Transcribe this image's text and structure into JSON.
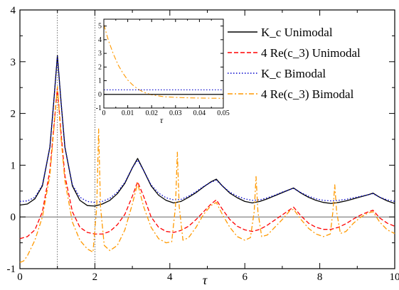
{
  "chart_data": [
    {
      "type": "line",
      "xlabel": "τ",
      "ylabel": "",
      "xlim": [
        0,
        10
      ],
      "ylim": [
        -1,
        4
      ],
      "xticks": [
        "0",
        "2",
        "4",
        "6",
        "8",
        "10"
      ],
      "yticks": [
        "-1",
        "0",
        "1",
        "2",
        "3",
        "4"
      ],
      "vlines": [
        1,
        2
      ],
      "hline": 0,
      "legend": {
        "placement": "top-right",
        "entries": [
          "K_c Unimodal",
          "4 Re(c_3) Unimodal",
          "K_c Bimodal",
          "4 Re(c_3) Bimodal"
        ]
      },
      "series": [
        {
          "name": "K_c Unimodal",
          "color": "#000000",
          "style": "solid",
          "points": [
            [
              0,
              0.23
            ],
            [
              0.2,
              0.25
            ],
            [
              0.4,
              0.35
            ],
            [
              0.6,
              0.6
            ],
            [
              0.8,
              1.35
            ],
            [
              0.9,
              2.2
            ],
            [
              1.0,
              3.12
            ],
            [
              1.1,
              2.2
            ],
            [
              1.2,
              1.35
            ],
            [
              1.4,
              0.6
            ],
            [
              1.6,
              0.32
            ],
            [
              1.8,
              0.22
            ],
            [
              2.0,
              0.21
            ],
            [
              2.2,
              0.25
            ],
            [
              2.4,
              0.32
            ],
            [
              2.6,
              0.45
            ],
            [
              2.8,
              0.65
            ],
            [
              3.0,
              0.95
            ],
            [
              3.14,
              1.13
            ],
            [
              3.3,
              0.9
            ],
            [
              3.5,
              0.6
            ],
            [
              3.7,
              0.42
            ],
            [
              3.9,
              0.32
            ],
            [
              4.1,
              0.27
            ],
            [
              4.3,
              0.3
            ],
            [
              4.5,
              0.38
            ],
            [
              4.7,
              0.47
            ],
            [
              4.9,
              0.58
            ],
            [
              5.1,
              0.68
            ],
            [
              5.24,
              0.73
            ],
            [
              5.4,
              0.6
            ],
            [
              5.6,
              0.46
            ],
            [
              5.8,
              0.37
            ],
            [
              6.0,
              0.3
            ],
            [
              6.2,
              0.27
            ],
            [
              6.4,
              0.3
            ],
            [
              6.6,
              0.35
            ],
            [
              6.8,
              0.41
            ],
            [
              7.0,
              0.47
            ],
            [
              7.2,
              0.53
            ],
            [
              7.3,
              0.56
            ],
            [
              7.5,
              0.46
            ],
            [
              7.7,
              0.38
            ],
            [
              7.9,
              0.32
            ],
            [
              8.1,
              0.28
            ],
            [
              8.3,
              0.26
            ],
            [
              8.5,
              0.28
            ],
            [
              8.7,
              0.31
            ],
            [
              8.9,
              0.35
            ],
            [
              9.1,
              0.39
            ],
            [
              9.3,
              0.43
            ],
            [
              9.42,
              0.46
            ],
            [
              9.6,
              0.38
            ],
            [
              9.8,
              0.31
            ],
            [
              10.0,
              0.26
            ]
          ]
        },
        {
          "name": "4 Re(c_3) Unimodal",
          "color": "#ff0000",
          "style": "dashed",
          "points": [
            [
              0,
              -0.42
            ],
            [
              0.2,
              -0.38
            ],
            [
              0.4,
              -0.25
            ],
            [
              0.6,
              0.1
            ],
            [
              0.8,
              0.9
            ],
            [
              0.9,
              1.7
            ],
            [
              1.0,
              2.5
            ],
            [
              1.1,
              1.6
            ],
            [
              1.2,
              0.8
            ],
            [
              1.4,
              0.1
            ],
            [
              1.6,
              -0.2
            ],
            [
              1.8,
              -0.3
            ],
            [
              2.0,
              -0.33
            ],
            [
              2.2,
              -0.33
            ],
            [
              2.4,
              -0.28
            ],
            [
              2.6,
              -0.15
            ],
            [
              2.8,
              0.05
            ],
            [
              3.0,
              0.4
            ],
            [
              3.14,
              0.68
            ],
            [
              3.3,
              0.4
            ],
            [
              3.5,
              0.0
            ],
            [
              3.7,
              -0.2
            ],
            [
              3.9,
              -0.28
            ],
            [
              4.1,
              -0.3
            ],
            [
              4.3,
              -0.26
            ],
            [
              4.5,
              -0.18
            ],
            [
              4.7,
              -0.05
            ],
            [
              4.9,
              0.1
            ],
            [
              5.1,
              0.25
            ],
            [
              5.24,
              0.33
            ],
            [
              5.4,
              0.15
            ],
            [
              5.6,
              -0.05
            ],
            [
              5.8,
              -0.18
            ],
            [
              6.0,
              -0.25
            ],
            [
              6.2,
              -0.28
            ],
            [
              6.4,
              -0.24
            ],
            [
              6.6,
              -0.16
            ],
            [
              6.8,
              -0.06
            ],
            [
              7.0,
              0.04
            ],
            [
              7.2,
              0.14
            ],
            [
              7.3,
              0.19
            ],
            [
              7.5,
              0.02
            ],
            [
              7.7,
              -0.12
            ],
            [
              7.9,
              -0.2
            ],
            [
              8.1,
              -0.24
            ],
            [
              8.3,
              -0.24
            ],
            [
              8.5,
              -0.2
            ],
            [
              8.7,
              -0.13
            ],
            [
              8.9,
              -0.04
            ],
            [
              9.1,
              0.04
            ],
            [
              9.3,
              0.1
            ],
            [
              9.42,
              0.13
            ],
            [
              9.6,
              -0.02
            ],
            [
              9.8,
              -0.12
            ],
            [
              10.0,
              -0.18
            ]
          ]
        },
        {
          "name": "K_c Bimodal",
          "color": "#0000cc",
          "style": "dotted",
          "points": [
            [
              0,
              0.3
            ],
            [
              0.2,
              0.31
            ],
            [
              0.4,
              0.38
            ],
            [
              0.6,
              0.62
            ],
            [
              0.8,
              1.35
            ],
            [
              0.9,
              2.2
            ],
            [
              1.0,
              3.1
            ],
            [
              1.1,
              2.2
            ],
            [
              1.2,
              1.35
            ],
            [
              1.4,
              0.62
            ],
            [
              1.6,
              0.38
            ],
            [
              1.8,
              0.3
            ],
            [
              2.0,
              0.28
            ],
            [
              2.2,
              0.3
            ],
            [
              2.4,
              0.36
            ],
            [
              2.6,
              0.48
            ],
            [
              2.8,
              0.67
            ],
            [
              3.0,
              0.95
            ],
            [
              3.14,
              1.1
            ],
            [
              3.3,
              0.9
            ],
            [
              3.5,
              0.62
            ],
            [
              3.7,
              0.46
            ],
            [
              3.9,
              0.37
            ],
            [
              4.1,
              0.33
            ],
            [
              4.3,
              0.34
            ],
            [
              4.5,
              0.4
            ],
            [
              4.7,
              0.49
            ],
            [
              4.9,
              0.59
            ],
            [
              5.1,
              0.67
            ],
            [
              5.24,
              0.71
            ],
            [
              5.4,
              0.6
            ],
            [
              5.6,
              0.48
            ],
            [
              5.8,
              0.4
            ],
            [
              6.0,
              0.35
            ],
            [
              6.2,
              0.32
            ],
            [
              6.4,
              0.33
            ],
            [
              6.6,
              0.37
            ],
            [
              6.8,
              0.42
            ],
            [
              7.0,
              0.48
            ],
            [
              7.2,
              0.53
            ],
            [
              7.3,
              0.55
            ],
            [
              7.5,
              0.47
            ],
            [
              7.7,
              0.4
            ],
            [
              7.9,
              0.35
            ],
            [
              8.1,
              0.32
            ],
            [
              8.3,
              0.31
            ],
            [
              8.5,
              0.32
            ],
            [
              8.7,
              0.34
            ],
            [
              8.9,
              0.37
            ],
            [
              9.1,
              0.4
            ],
            [
              9.3,
              0.43
            ],
            [
              9.42,
              0.45
            ],
            [
              9.6,
              0.38
            ],
            [
              9.8,
              0.33
            ],
            [
              10.0,
              0.3
            ]
          ]
        },
        {
          "name": "4 Re(c_3) Bimodal",
          "color": "#ff9900",
          "style": "dashdot",
          "points": [
            [
              0,
              -0.88
            ],
            [
              0.1,
              -0.85
            ],
            [
              0.2,
              -0.75
            ],
            [
              0.4,
              -0.45
            ],
            [
              0.6,
              0.0
            ],
            [
              0.8,
              0.8
            ],
            [
              0.9,
              1.65
            ],
            [
              1.0,
              2.52
            ],
            [
              1.1,
              1.5
            ],
            [
              1.2,
              0.7
            ],
            [
              1.4,
              -0.1
            ],
            [
              1.6,
              -0.45
            ],
            [
              1.8,
              -0.62
            ],
            [
              1.95,
              -0.68
            ],
            [
              2.05,
              0.2
            ],
            [
              2.1,
              1.7
            ],
            [
              2.15,
              0.2
            ],
            [
              2.25,
              -0.55
            ],
            [
              2.4,
              -0.65
            ],
            [
              2.6,
              -0.55
            ],
            [
              2.8,
              -0.25
            ],
            [
              3.0,
              0.25
            ],
            [
              3.14,
              0.65
            ],
            [
              3.3,
              0.2
            ],
            [
              3.5,
              -0.2
            ],
            [
              3.7,
              -0.42
            ],
            [
              3.9,
              -0.5
            ],
            [
              4.05,
              -0.48
            ],
            [
              4.15,
              0.2
            ],
            [
              4.2,
              1.25
            ],
            [
              4.25,
              0.2
            ],
            [
              4.35,
              -0.45
            ],
            [
              4.5,
              -0.4
            ],
            [
              4.7,
              -0.2
            ],
            [
              4.9,
              0.05
            ],
            [
              5.1,
              0.22
            ],
            [
              5.24,
              0.28
            ],
            [
              5.4,
              0.05
            ],
            [
              5.6,
              -0.2
            ],
            [
              5.8,
              -0.38
            ],
            [
              6.0,
              -0.45
            ],
            [
              6.15,
              -0.4
            ],
            [
              6.25,
              0.1
            ],
            [
              6.3,
              0.78
            ],
            [
              6.35,
              0.1
            ],
            [
              6.45,
              -0.38
            ],
            [
              6.6,
              -0.35
            ],
            [
              6.8,
              -0.2
            ],
            [
              7.0,
              -0.05
            ],
            [
              7.2,
              0.12
            ],
            [
              7.3,
              0.15
            ],
            [
              7.5,
              -0.05
            ],
            [
              7.7,
              -0.22
            ],
            [
              7.9,
              -0.33
            ],
            [
              8.1,
              -0.38
            ],
            [
              8.28,
              -0.33
            ],
            [
              8.35,
              0.1
            ],
            [
              8.4,
              0.62
            ],
            [
              8.45,
              0.1
            ],
            [
              8.55,
              -0.32
            ],
            [
              8.7,
              -0.28
            ],
            [
              8.9,
              -0.12
            ],
            [
              9.1,
              0.0
            ],
            [
              9.3,
              0.08
            ],
            [
              9.42,
              0.1
            ],
            [
              9.6,
              -0.1
            ],
            [
              9.8,
              -0.25
            ],
            [
              10.0,
              -0.32
            ]
          ]
        }
      ]
    },
    {
      "type": "line",
      "xlabel": "τ",
      "ylabel": "",
      "xlim": [
        0,
        0.05
      ],
      "ylim": [
        -1,
        5.5
      ],
      "xticks": [
        "0",
        "0.01",
        "0.02",
        "0.03",
        "0.04",
        "0.05"
      ],
      "yticks": [
        "-1",
        "0",
        "1",
        "2",
        "3",
        "4",
        "5"
      ],
      "hline": 0,
      "series": [
        {
          "name": "4 Re(c_3) Bimodal",
          "color": "#ff9900",
          "style": "dashdot",
          "points": [
            [
              0,
              5.1
            ],
            [
              0.002,
              3.9
            ],
            [
              0.004,
              2.95
            ],
            [
              0.006,
              2.15
            ],
            [
              0.008,
              1.55
            ],
            [
              0.01,
              1.05
            ],
            [
              0.012,
              0.7
            ],
            [
              0.014,
              0.42
            ],
            [
              0.016,
              0.22
            ],
            [
              0.018,
              0.07
            ],
            [
              0.02,
              -0.03
            ],
            [
              0.025,
              -0.17
            ],
            [
              0.03,
              -0.22
            ],
            [
              0.035,
              -0.25
            ],
            [
              0.04,
              -0.27
            ],
            [
              0.045,
              -0.28
            ],
            [
              0.05,
              -0.29
            ]
          ]
        },
        {
          "name": "K_c Bimodal",
          "color": "#0000cc",
          "style": "dotted",
          "points": [
            [
              0,
              0.33
            ],
            [
              0.05,
              0.33
            ]
          ]
        },
        {
          "name": "K_c Unimodal",
          "color": "#000000",
          "style": "solid",
          "points": [
            [
              0,
              0.0
            ],
            [
              0.05,
              0.0
            ]
          ]
        }
      ]
    }
  ]
}
